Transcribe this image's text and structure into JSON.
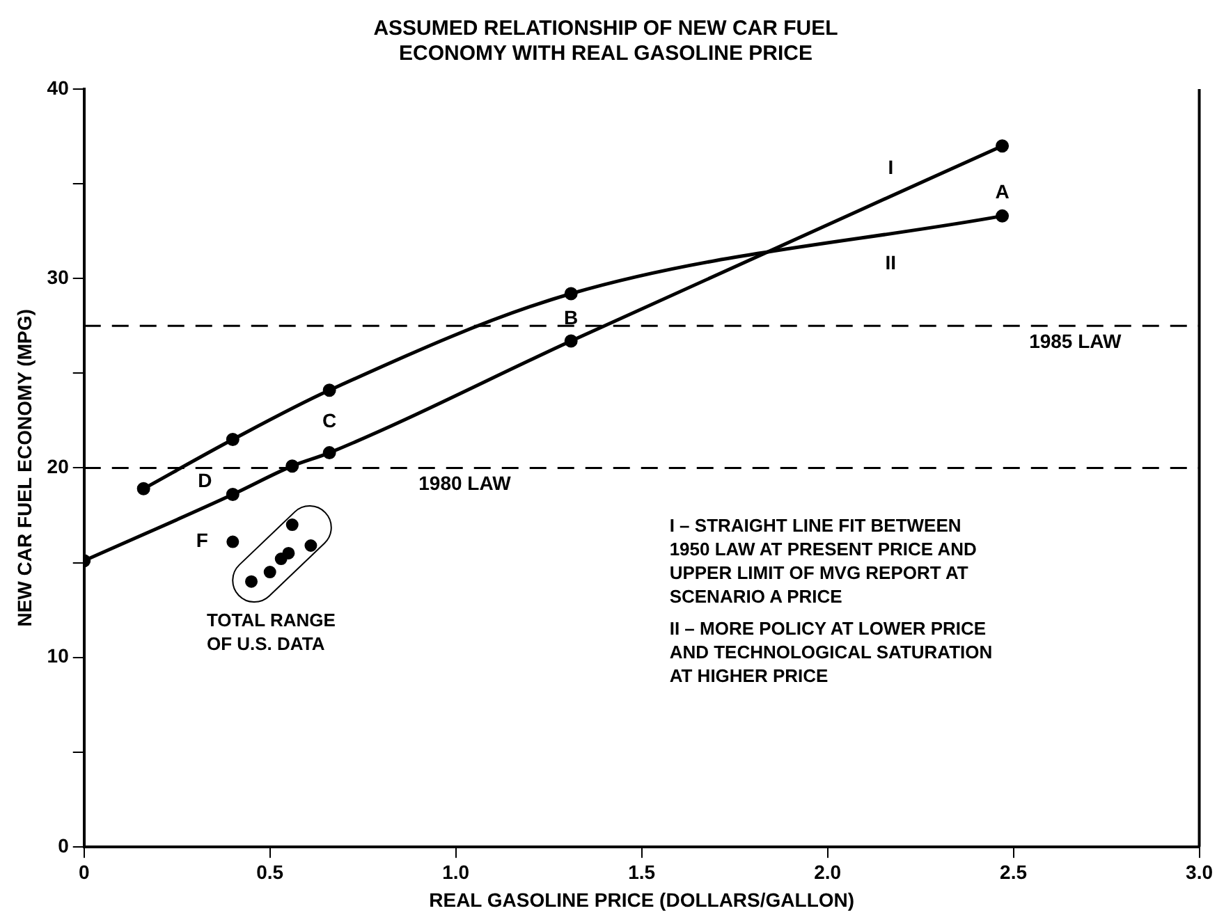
{
  "chart_data": {
    "type": "line",
    "title": "ASSUMED RELATIONSHIP OF NEW CAR FUEL\nECONOMY WITH REAL GASOLINE PRICE",
    "xlabel": "REAL GASOLINE PRICE (DOLLARS/GALLON)",
    "ylabel": "NEW CAR FUEL ECONOMY (MPG)",
    "xlim": [
      0,
      3
    ],
    "xticks": [
      0,
      {
        "value": 0.5,
        "label": "0.5"
      },
      {
        "value": 1,
        "label": "1.0"
      },
      {
        "value": 1.5,
        "label": "1.5"
      },
      {
        "value": 2,
        "label": "2.0"
      },
      {
        "value": 2.5,
        "label": "2.5"
      },
      {
        "value": 3,
        "label": "3.0"
      }
    ],
    "ylim": [
      0,
      40
    ],
    "yticks": [
      0,
      {
        "value": 5,
        "label": null
      },
      10,
      {
        "value": 15,
        "label": null
      },
      20,
      {
        "value": 25,
        "label": null
      },
      30,
      {
        "value": 35,
        "label": null
      },
      40
    ],
    "grid": false,
    "legend": false,
    "marker": "circle",
    "line_style": "solid",
    "series": [
      {
        "name": "I",
        "color": "#000000",
        "x": [
          0,
          0.4,
          0.56,
          0.66,
          1.31,
          2.47
        ],
        "values": [
          15.1,
          18.6,
          20.1,
          20.8,
          26.7,
          37.0
        ]
      },
      {
        "name": "II",
        "color": "#000000",
        "x": [
          0.16,
          0.4,
          0.66,
          1.31,
          2.47
        ],
        "values": [
          18.9,
          21.5,
          24.1,
          29.2,
          33.3
        ]
      },
      {
        "type": "scatter",
        "color": "#000000",
        "x": [
          0.4,
          0.45,
          0.5,
          0.53,
          0.55,
          0.56,
          0.61
        ],
        "values": [
          16.1,
          14.0,
          14.5,
          15.2,
          15.5,
          17.0,
          15.9
        ]
      }
    ],
    "ref_lines": [
      {
        "axis": "y",
        "value": 27.5,
        "label": "1985 LAW",
        "color": "#000000",
        "line_style": "dashed"
      },
      {
        "axis": "y",
        "value": 20,
        "label": "1980 LAW",
        "color": "#000000",
        "line_style": "dashed"
      }
    ],
    "annotations": [
      {
        "text": "A",
        "x": 2.47,
        "y": 37.0
      },
      {
        "text": "B",
        "x": 1.31,
        "y": 29.2
      },
      {
        "text": "C",
        "x": 0.66,
        "y": 20.8
      },
      {
        "text": "D",
        "x": 0.4,
        "y": 18.6
      },
      {
        "text": "F",
        "x": 0.4,
        "y": 16.1
      },
      "TOTAL RANGE\nOF U.S. DATA",
      "I – STRAIGHT LINE FIT BETWEEN\n1950 LAW AT PRESENT PRICE AND\nUPPER LIMIT OF MVG REPORT AT\nSCENARIO A PRICE",
      "II – MORE POLICY AT LOWER PRICE\nAND TECHNOLOGICAL SATURATION\nAT HIGHER PRICE"
    ]
  }
}
